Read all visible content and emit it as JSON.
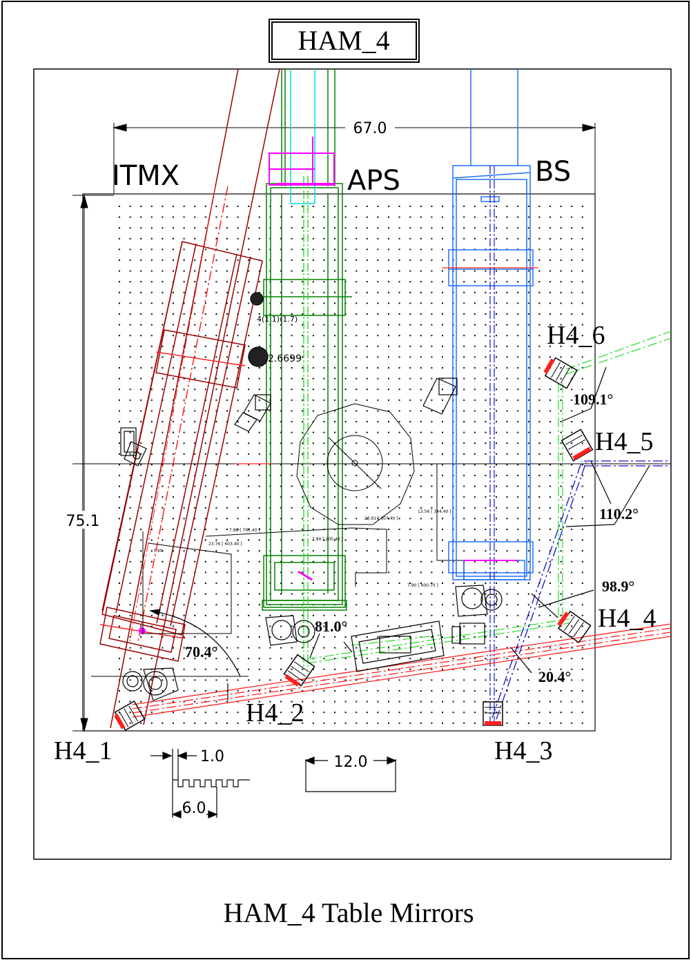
{
  "title_box": "HAM_4",
  "caption": "HAM_4 Table Mirrors",
  "regions": {
    "itmx": "ITMX",
    "aps": "APS",
    "bs": "BS"
  },
  "dimensions": {
    "width": "67.0",
    "height": "75.1",
    "hole_spacing": "1.0",
    "hole_pitch": "6.0",
    "scale_bar": "12.0"
  },
  "mirrors": [
    {
      "id": "H4_1"
    },
    {
      "id": "H4_2"
    },
    {
      "id": "H4_3"
    },
    {
      "id": "H4_4"
    },
    {
      "id": "H4_5"
    },
    {
      "id": "H4_6"
    }
  ],
  "angles": {
    "a1": "70.4°",
    "a2": "81.0°",
    "a3": "20.4°",
    "a4": "98.9°",
    "a5": "110.2°",
    "a6": "109.1°"
  },
  "small_labels": {
    "l1": "4(1.1)(1.7)",
    "l2": "2.6699"
  },
  "colors": {
    "frame": "#000000",
    "itmx": "#990000",
    "aps": "#008000",
    "bs": "#1e6fff",
    "beam_red": "#ff2020",
    "beam_green": "#33dd33",
    "beam_blue": "#1010cc",
    "magenta": "#ff00ff",
    "cyan": "#00d8d8"
  }
}
